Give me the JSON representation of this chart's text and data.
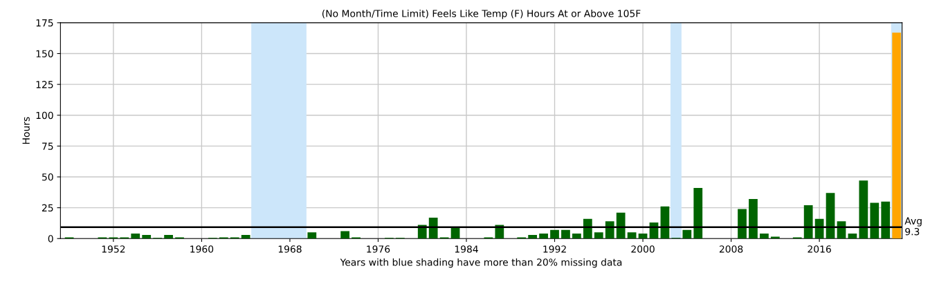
{
  "chart_data": {
    "type": "bar",
    "title": "(No Month/Time Limit) Feels Like Temp (F) Hours At or Above 105F",
    "xlabel": "Years with blue shading have more than 20% missing data",
    "ylabel": "Hours",
    "x": [
      1948,
      1949,
      1950,
      1951,
      1952,
      1953,
      1954,
      1955,
      1956,
      1957,
      1958,
      1959,
      1960,
      1961,
      1962,
      1963,
      1964,
      1965,
      1966,
      1967,
      1968,
      1969,
      1970,
      1971,
      1972,
      1973,
      1974,
      1975,
      1976,
      1977,
      1978,
      1979,
      1980,
      1981,
      1982,
      1983,
      1984,
      1985,
      1986,
      1987,
      1988,
      1989,
      1990,
      1991,
      1992,
      1993,
      1994,
      1995,
      1996,
      1997,
      1998,
      1999,
      2000,
      2001,
      2002,
      2003,
      2004,
      2005,
      2006,
      2007,
      2008,
      2009,
      2010,
      2011,
      2012,
      2013,
      2014,
      2015,
      2016,
      2017,
      2018,
      2019,
      2020,
      2021,
      2022,
      2023
    ],
    "values": [
      1,
      0,
      0,
      1,
      1,
      1,
      4,
      3,
      0.5,
      3,
      1,
      0,
      0,
      0.5,
      1,
      1,
      3,
      0,
      0,
      0,
      0,
      0,
      5,
      0,
      0,
      6,
      1,
      0,
      0,
      0.5,
      0.5,
      0,
      11,
      17,
      1,
      9,
      0,
      0,
      1,
      11,
      0,
      1,
      3,
      4,
      7,
      7,
      4,
      16,
      5,
      14,
      21,
      5,
      4,
      13,
      26,
      0.5,
      7,
      41,
      0,
      0,
      0,
      24,
      32,
      4,
      1.5,
      0,
      1,
      27,
      16,
      37,
      14,
      4,
      47,
      29,
      30,
      167
    ],
    "colors": [
      "#006400",
      "#006400",
      "#006400",
      "#006400",
      "#006400",
      "#006400",
      "#006400",
      "#006400",
      "#006400",
      "#006400",
      "#006400",
      "#006400",
      "#006400",
      "#006400",
      "#006400",
      "#006400",
      "#006400",
      "#006400",
      "#006400",
      "#006400",
      "#006400",
      "#006400",
      "#006400",
      "#006400",
      "#006400",
      "#006400",
      "#006400",
      "#006400",
      "#006400",
      "#006400",
      "#006400",
      "#006400",
      "#006400",
      "#006400",
      "#006400",
      "#006400",
      "#006400",
      "#006400",
      "#006400",
      "#006400",
      "#006400",
      "#006400",
      "#006400",
      "#006400",
      "#006400",
      "#006400",
      "#006400",
      "#006400",
      "#006400",
      "#006400",
      "#006400",
      "#006400",
      "#006400",
      "#006400",
      "#006400",
      "#006400",
      "#006400",
      "#006400",
      "#006400",
      "#006400",
      "#006400",
      "#006400",
      "#006400",
      "#006400",
      "#006400",
      "#006400",
      "#006400",
      "#006400",
      "#006400",
      "#006400",
      "#006400",
      "#006400",
      "#006400",
      "#006400",
      "#006400",
      "#ffa500"
    ],
    "xlim": [
      1947.2,
      2023.5
    ],
    "ylim": [
      0,
      175
    ],
    "xticks": [
      1952,
      1960,
      1968,
      1976,
      1984,
      1992,
      2000,
      2008,
      2016
    ],
    "yticks": [
      0,
      25,
      50,
      75,
      100,
      125,
      150,
      175
    ],
    "grid": true,
    "ref_lines": [
      {
        "axis": "y",
        "value": 9.3,
        "label": "Avg\n9.3",
        "color": "#000000"
      }
    ],
    "bands": [
      {
        "axis": "x",
        "from": 1964.5,
        "to": 1969.5,
        "color": "#cce6fa"
      },
      {
        "axis": "x",
        "from": 2002.5,
        "to": 2003.5,
        "color": "#cce6fa"
      },
      {
        "axis": "x",
        "from": 2022.5,
        "to": 2023.5,
        "color": "#cce6fa"
      }
    ]
  }
}
